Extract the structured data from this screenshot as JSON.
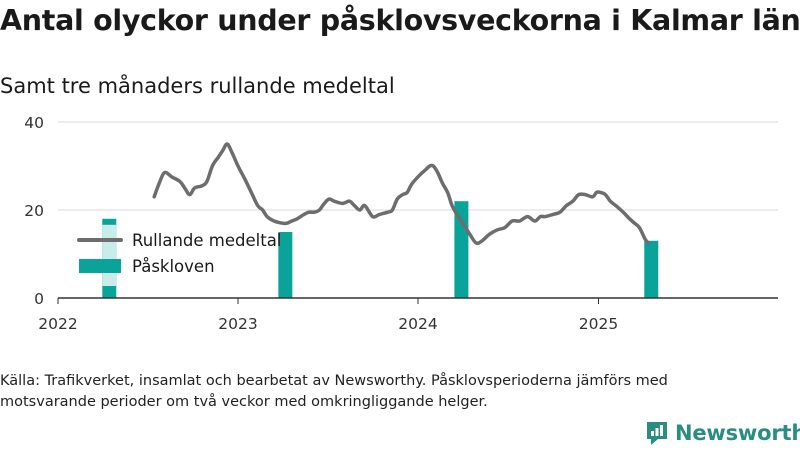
{
  "title": "Antal olyckor under påsklovsveckorna i Kalmar län",
  "subtitle": "Samt tre månaders rullande medeltal",
  "source": "Källa: Trafikverket, insamlat och bearbetat av Newsworthy. Påsklovsperioderna jämförs med motsvarande perioder om två veckor med omkringliggande helger.",
  "brand": {
    "name": "Newsworthy",
    "color": "#2b8c84",
    "icon": "newsworthy-logo-icon"
  },
  "colors": {
    "line": "#6d6d6d",
    "bar": "#0aa39a",
    "bar_light": "#c8ecea",
    "grid": "#d9d9d9",
    "axis": "#333333"
  },
  "chart_data": {
    "type": "bar+line",
    "ylim": [
      0,
      40
    ],
    "yticks": [
      0,
      20,
      40
    ],
    "xlim": [
      "2022-01-01",
      "2025-12-31"
    ],
    "xticks": [
      {
        "date": "2022-01-01",
        "label": "2022"
      },
      {
        "date": "2023-01-01",
        "label": "2023"
      },
      {
        "date": "2024-01-01",
        "label": "2024"
      },
      {
        "date": "2025-01-01",
        "label": "2025"
      }
    ],
    "grid": true,
    "legend": {
      "position": "left",
      "items": [
        {
          "label": "Rullande medeltal",
          "kind": "line"
        },
        {
          "label": "Påskloven",
          "kind": "bar"
        }
      ]
    },
    "bars": {
      "name": "Påskloven",
      "points": [
        {
          "date": "2022-04-15",
          "value": 18
        },
        {
          "date": "2023-04-07",
          "value": 15
        },
        {
          "date": "2024-03-29",
          "value": 22
        },
        {
          "date": "2025-04-18",
          "value": 13
        }
      ]
    },
    "line": {
      "name": "Rullande medeltal",
      "points": [
        [
          "2022-07-15",
          23
        ],
        [
          "2022-07-25",
          26
        ],
        [
          "2022-08-05",
          28.5
        ],
        [
          "2022-08-20",
          27.5
        ],
        [
          "2022-09-05",
          26.5
        ],
        [
          "2022-09-15",
          25
        ],
        [
          "2022-09-25",
          23.5
        ],
        [
          "2022-10-05",
          25
        ],
        [
          "2022-10-20",
          25.5
        ],
        [
          "2022-10-30",
          26.5
        ],
        [
          "2022-11-10",
          30
        ],
        [
          "2022-11-22",
          32
        ],
        [
          "2022-12-01",
          33.5
        ],
        [
          "2022-12-10",
          35
        ],
        [
          "2022-12-20",
          33
        ],
        [
          "2023-01-01",
          30
        ],
        [
          "2023-01-15",
          27
        ],
        [
          "2023-01-28",
          24
        ],
        [
          "2023-02-10",
          21
        ],
        [
          "2023-02-20",
          20
        ],
        [
          "2023-03-01",
          18.5
        ],
        [
          "2023-03-15",
          17.5
        ],
        [
          "2023-04-01",
          17
        ],
        [
          "2023-04-10",
          17
        ],
        [
          "2023-04-20",
          17.5
        ],
        [
          "2023-05-01",
          18
        ],
        [
          "2023-05-15",
          19
        ],
        [
          "2023-05-25",
          19.5
        ],
        [
          "2023-06-05",
          19.5
        ],
        [
          "2023-06-15",
          20
        ],
        [
          "2023-06-25",
          21.5
        ],
        [
          "2023-07-05",
          22.5
        ],
        [
          "2023-07-15",
          22
        ],
        [
          "2023-08-01",
          21.5
        ],
        [
          "2023-08-15",
          22
        ],
        [
          "2023-08-25",
          21
        ],
        [
          "2023-09-05",
          20
        ],
        [
          "2023-09-15",
          21
        ],
        [
          "2023-10-01",
          18.5
        ],
        [
          "2023-10-15",
          19
        ],
        [
          "2023-11-01",
          19.5
        ],
        [
          "2023-11-10",
          20
        ],
        [
          "2023-11-20",
          22.5
        ],
        [
          "2023-12-01",
          23.5
        ],
        [
          "2023-12-10",
          24
        ],
        [
          "2023-12-20",
          26
        ],
        [
          "2024-01-05",
          28
        ],
        [
          "2024-01-15",
          29
        ],
        [
          "2024-01-25",
          30
        ],
        [
          "2024-02-01",
          30
        ],
        [
          "2024-02-10",
          28.5
        ],
        [
          "2024-02-20",
          26
        ],
        [
          "2024-03-01",
          24
        ],
        [
          "2024-03-10",
          21
        ],
        [
          "2024-03-20",
          19
        ],
        [
          "2024-04-01",
          17
        ],
        [
          "2024-04-15",
          14.5
        ],
        [
          "2024-04-28",
          12.5
        ],
        [
          "2024-05-10",
          13
        ],
        [
          "2024-05-25",
          14.5
        ],
        [
          "2024-06-10",
          15.5
        ],
        [
          "2024-06-25",
          16
        ],
        [
          "2024-07-10",
          17.5
        ],
        [
          "2024-07-25",
          17.5
        ],
        [
          "2024-08-10",
          18.5
        ],
        [
          "2024-08-25",
          17.5
        ],
        [
          "2024-09-05",
          18.5
        ],
        [
          "2024-09-15",
          18.5
        ],
        [
          "2024-10-01",
          19
        ],
        [
          "2024-10-15",
          19.5
        ],
        [
          "2024-10-28",
          21
        ],
        [
          "2024-11-10",
          22
        ],
        [
          "2024-11-22",
          23.5
        ],
        [
          "2024-12-05",
          23.5
        ],
        [
          "2024-12-20",
          23
        ],
        [
          "2024-12-28",
          24
        ],
        [
          "2025-01-05",
          24
        ],
        [
          "2025-01-15",
          23.5
        ],
        [
          "2025-01-25",
          22
        ],
        [
          "2025-02-05",
          21
        ],
        [
          "2025-02-20",
          19.5
        ],
        [
          "2025-03-05",
          18
        ],
        [
          "2025-03-15",
          17
        ],
        [
          "2025-03-25",
          16
        ],
        [
          "2025-04-05",
          13.5
        ],
        [
          "2025-04-12",
          12.5
        ]
      ]
    }
  }
}
